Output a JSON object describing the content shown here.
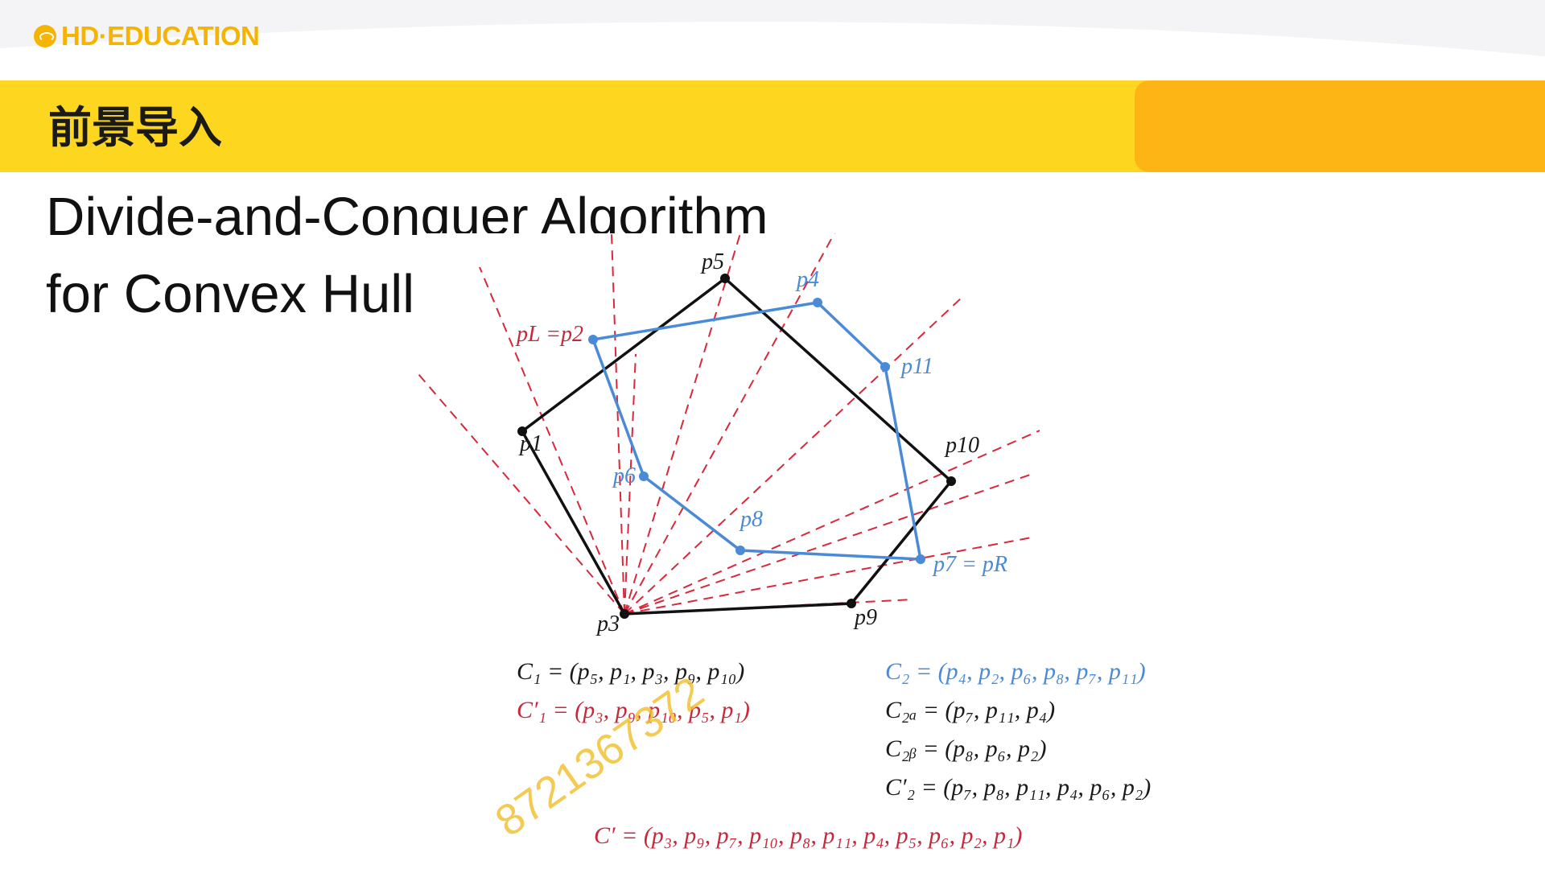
{
  "logo": {
    "text": "HD·EDUCATION"
  },
  "banner": {
    "title": "前景导入"
  },
  "slide": {
    "title_line1": "Divide-and-Conquer Algorithm",
    "title_line2": "for Convex Hull"
  },
  "diagram": {
    "labels": {
      "p5": "p5",
      "p4": "p4",
      "pL_p2": "pL =p2",
      "p11": "p11",
      "p1": "p1",
      "p10": "p10",
      "p6": "p6",
      "p8": "p8",
      "p7_pR": "p7 = pR",
      "p3": "p3",
      "p9": "p9"
    },
    "equations": {
      "c1": "C₁ = (p₅, p₁, p₃, p₉, p₁₀)",
      "c1p": "C′₁ = (p₃, p₉, p₁₀, p₅, p₁)",
      "c2": "C₂ = (p₄, p₂, p₆, p₈, p₇, p₁₁)",
      "c2a": "C₂ₐ = (p₇, p₁₁, p₄)",
      "c2b": "C₂ᵦ = (p₈, p₆, p₂)",
      "c2p": "C′₂ = (p₇, p₈, p₁₁, p₄, p₆, p₂)",
      "cp": "C′ = (p₃, p₉, p₇, p₁₀, p₈, p₁₁, p₄, p₅, p₆, p₂, p₁)"
    },
    "colors": {
      "black_hull": "#111111",
      "blue_hull": "#4a8ad6",
      "red_rays": "#d8283c"
    }
  },
  "watermark": {
    "text": "8721367372"
  }
}
